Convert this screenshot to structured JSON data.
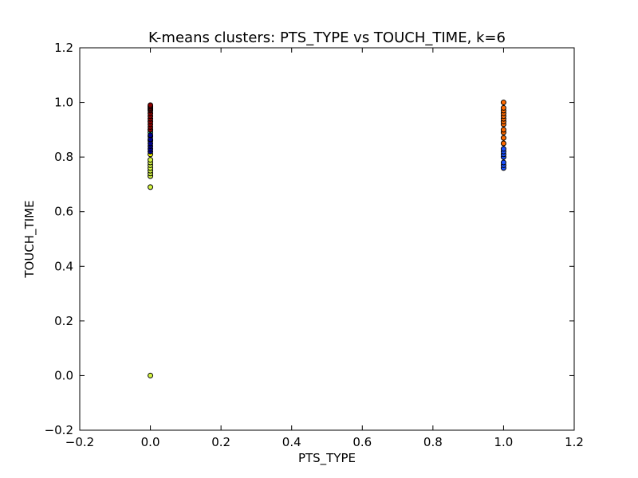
{
  "chart_data": {
    "type": "scatter",
    "title": "K-means clusters: PTS_TYPE vs TOUCH_TIME, k=6",
    "xlabel": "PTS_TYPE",
    "ylabel": "TOUCH_TIME",
    "xlim": [
      -0.2,
      1.2
    ],
    "ylim": [
      -0.2,
      1.2
    ],
    "xticks": [
      -0.2,
      0.0,
      0.2,
      0.4,
      0.6,
      0.8,
      1.0,
      1.2
    ],
    "yticks": [
      -0.2,
      0.0,
      0.2,
      0.4,
      0.6,
      0.8,
      1.0,
      1.2
    ],
    "xtick_labels": [
      "−0.2",
      "0.0",
      "0.2",
      "0.4",
      "0.6",
      "0.8",
      "1.0",
      "1.2"
    ],
    "ytick_labels": [
      "−0.2",
      "0.0",
      "0.2",
      "0.4",
      "0.6",
      "0.8",
      "1.0",
      "1.2"
    ],
    "grid": false,
    "series": [
      {
        "color": "#d4f542",
        "x": [
          0,
          0,
          0,
          0,
          0,
          0,
          0,
          0,
          0
        ],
        "y": [
          0.0,
          0.69,
          0.73,
          0.74,
          0.75,
          0.76,
          0.77,
          0.78,
          0.79
        ]
      },
      {
        "color": "#ffff00",
        "x": [
          0
        ],
        "y": [
          0.81
        ]
      },
      {
        "color": "#3dffc3",
        "x": [
          0,
          0,
          0
        ],
        "y": [
          0.86,
          0.875,
          0.89
        ]
      },
      {
        "color": "#00008f",
        "x": [
          0,
          0,
          0,
          0,
          0,
          0,
          0
        ],
        "y": [
          0.82,
          0.83,
          0.84,
          0.85,
          0.865,
          0.88,
          0.9
        ]
      },
      {
        "color": "#8b0000",
        "x": [
          0,
          0,
          0,
          0,
          0,
          0,
          0,
          0,
          0,
          0,
          0,
          0
        ],
        "y": [
          0.9,
          0.91,
          0.92,
          0.93,
          0.94,
          0.95,
          0.96,
          0.97,
          0.975,
          0.98,
          0.985,
          0.99
        ]
      },
      {
        "color": "#ff6a00",
        "x": [
          1,
          1,
          1,
          1,
          1,
          1,
          1,
          1,
          1,
          1,
          1,
          1
        ],
        "y": [
          0.85,
          0.87,
          0.89,
          0.9,
          0.92,
          0.93,
          0.94,
          0.95,
          0.96,
          0.97,
          0.98,
          1.0
        ]
      },
      {
        "color": "#1a50ff",
        "x": [
          1,
          1,
          1,
          1,
          1,
          1,
          1
        ],
        "y": [
          0.76,
          0.77,
          0.78,
          0.8,
          0.81,
          0.82,
          0.83
        ]
      }
    ]
  }
}
